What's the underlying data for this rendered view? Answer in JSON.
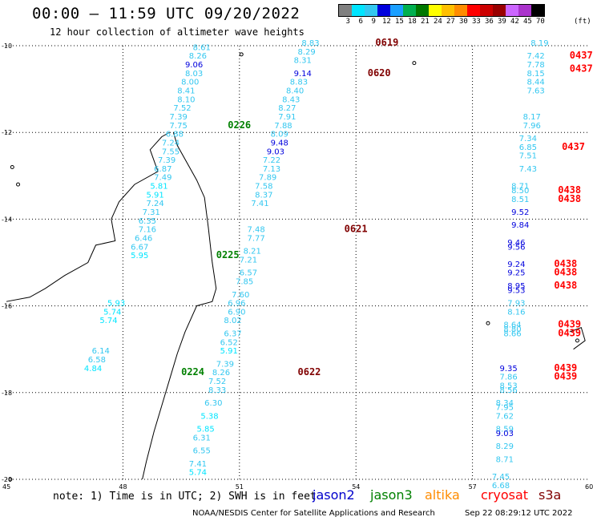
{
  "header": {
    "title": "00:00 – 11:59 UTC 09/20/2022",
    "subtitle": "12 hour collection of altimeter wave heights"
  },
  "colorbar": {
    "labels": [
      "3",
      "6",
      "9",
      "12",
      "15",
      "18",
      "21",
      "24",
      "27",
      "30",
      "33",
      "36",
      "39",
      "42",
      "45",
      "70"
    ],
    "unit": "(ft)",
    "colors": [
      "#808080",
      "#00e5ff",
      "#33c7f0",
      "#0000dd",
      "#1a9fff",
      "#00b050",
      "#007800",
      "#ffff00",
      "#ffc000",
      "#ff8c00",
      "#ff0000",
      "#cc0000",
      "#990000",
      "#cc66ff",
      "#aa33cc",
      "#000000"
    ]
  },
  "axes": {
    "lat_labels": [
      "-10",
      "-12",
      "-14",
      "-16",
      "-18",
      "-20"
    ],
    "lon_labels": [
      "45",
      "48",
      "51",
      "54",
      "57",
      "60"
    ]
  },
  "colors": {
    "jason2": "#0000cc",
    "jason3": "#008000",
    "altika": "#ff8c00",
    "cryosat": "#ff0000",
    "s3a": "#800000",
    "cyan": "#00bcd4"
  },
  "tracks": [
    {
      "pass": "0226",
      "pass_lat": -11.9,
      "pass_lon": 50.7,
      "pass_color": "#008000",
      "points": [
        [
          -10.1,
          49.8,
          "8.61",
          "#33c7f0"
        ],
        [
          -10.3,
          49.7,
          "8.26",
          "#33c7f0"
        ],
        [
          -10.5,
          49.6,
          "9.06",
          "#0000dd"
        ],
        [
          -10.7,
          49.6,
          "8.03",
          "#33c7f0"
        ],
        [
          -10.9,
          49.5,
          "8.00",
          "#33c7f0"
        ],
        [
          -11.1,
          49.4,
          "8.41",
          "#33c7f0"
        ],
        [
          -11.3,
          49.4,
          "8.10",
          "#33c7f0"
        ],
        [
          -11.5,
          49.3,
          "7.52",
          "#33c7f0"
        ],
        [
          -11.7,
          49.2,
          "7.39",
          "#33c7f0"
        ],
        [
          -11.9,
          49.2,
          "7.75",
          "#33c7f0"
        ],
        [
          -12.1,
          49.1,
          "6.88",
          "#33c7f0"
        ],
        [
          -12.3,
          49.0,
          "7.24",
          "#33c7f0"
        ],
        [
          -12.5,
          49.0,
          "7.55",
          "#33c7f0"
        ],
        [
          -12.7,
          48.9,
          "7.39",
          "#33c7f0"
        ],
        [
          -12.9,
          48.8,
          "6.87",
          "#33c7f0"
        ],
        [
          -13.1,
          48.8,
          "7.49",
          "#33c7f0"
        ],
        [
          -13.3,
          48.7,
          "5.81",
          "#00e5ff"
        ],
        [
          -13.5,
          48.6,
          "5.91",
          "#00e5ff"
        ],
        [
          -13.7,
          48.6,
          "7.24",
          "#33c7f0"
        ],
        [
          -13.9,
          48.5,
          "7.31",
          "#33c7f0"
        ],
        [
          -14.1,
          48.4,
          "6.35",
          "#33c7f0"
        ],
        [
          -14.3,
          48.4,
          "7.16",
          "#33c7f0"
        ],
        [
          -14.5,
          48.3,
          "6.46",
          "#33c7f0"
        ],
        [
          -14.7,
          48.2,
          "6.67",
          "#33c7f0"
        ],
        [
          -14.9,
          48.2,
          "5.95",
          "#00e5ff"
        ]
      ]
    },
    {
      "pass": "0225",
      "pass_lat": -14.9,
      "pass_lon": 50.4,
      "pass_color": "#008000",
      "points": []
    },
    {
      "pass": "0224",
      "pass_lat": -17.6,
      "pass_lon": 49.5,
      "pass_color": "#008000",
      "points": [
        [
          -16.0,
          47.6,
          "5.93",
          "#00e5ff"
        ],
        [
          -16.2,
          47.5,
          "5.74",
          "#00e5ff"
        ],
        [
          -16.4,
          47.4,
          "5.74",
          "#00e5ff"
        ],
        [
          -17.1,
          47.2,
          "6.14",
          "#33c7f0"
        ],
        [
          -17.3,
          47.1,
          "6.58",
          "#33c7f0"
        ],
        [
          -17.5,
          47.0,
          "4.84",
          "#00e5ff"
        ]
      ]
    },
    {
      "pass": "0619",
      "pass_lat": -10.0,
      "pass_lon": 54.5,
      "pass_color": "#800000",
      "points": [
        [
          -10.0,
          52.6,
          "8.83",
          "#33c7f0"
        ],
        [
          -10.2,
          52.5,
          "8.29",
          "#33c7f0"
        ],
        [
          -10.4,
          52.4,
          "8.31",
          "#33c7f0"
        ]
      ]
    },
    {
      "pass": "0620",
      "pass_lat": -10.7,
      "pass_lon": 54.3,
      "pass_color": "#800000",
      "points": [
        [
          -10.7,
          52.4,
          "9.14",
          "#0000dd"
        ],
        [
          -10.9,
          52.3,
          "8.83",
          "#33c7f0"
        ],
        [
          -11.1,
          52.2,
          "8.40",
          "#33c7f0"
        ],
        [
          -11.3,
          52.1,
          "8.43",
          "#33c7f0"
        ],
        [
          -11.5,
          52.0,
          "8.27",
          "#33c7f0"
        ],
        [
          -11.7,
          52.0,
          "7.91",
          "#33c7f0"
        ],
        [
          -11.9,
          51.9,
          "7.88",
          "#33c7f0"
        ],
        [
          -12.1,
          51.8,
          "8.09",
          "#33c7f0"
        ],
        [
          -12.3,
          51.8,
          "9.48",
          "#0000dd"
        ],
        [
          -12.5,
          51.7,
          "9.03",
          "#0000dd"
        ],
        [
          -12.7,
          51.6,
          "7.22",
          "#33c7f0"
        ],
        [
          -12.9,
          51.6,
          "7.13",
          "#33c7f0"
        ],
        [
          -13.1,
          51.5,
          "7.89",
          "#33c7f0"
        ],
        [
          -13.3,
          51.4,
          "7.58",
          "#33c7f0"
        ],
        [
          -13.5,
          51.4,
          "8.37",
          "#33c7f0"
        ],
        [
          -13.7,
          51.3,
          "7.41",
          "#33c7f0"
        ]
      ]
    },
    {
      "pass": "0621",
      "pass_lat": -14.3,
      "pass_lon": 53.7,
      "pass_color": "#800000",
      "points": [
        [
          -14.3,
          51.2,
          "7.48",
          "#33c7f0"
        ],
        [
          -14.5,
          51.2,
          "7.77",
          "#33c7f0"
        ],
        [
          -14.8,
          51.1,
          "8.21",
          "#33c7f0"
        ],
        [
          -15.0,
          51.0,
          "7.21",
          "#33c7f0"
        ],
        [
          -15.3,
          51.0,
          "6.57",
          "#33c7f0"
        ],
        [
          -15.5,
          50.9,
          "7.85",
          "#33c7f0"
        ],
        [
          -15.8,
          50.8,
          "7.60",
          "#33c7f0"
        ],
        [
          -16.0,
          50.7,
          "6.96",
          "#33c7f0"
        ],
        [
          -16.2,
          50.7,
          "6.90",
          "#33c7f0"
        ],
        [
          -16.4,
          50.6,
          "8.02",
          "#33c7f0"
        ],
        [
          -16.7,
          50.6,
          "6.37",
          "#33c7f0"
        ],
        [
          -16.9,
          50.5,
          "6.52",
          "#33c7f0"
        ],
        [
          -17.1,
          50.5,
          "5.91",
          "#00e5ff"
        ],
        [
          -17.4,
          50.4,
          "7.39",
          "#33c7f0"
        ]
      ]
    },
    {
      "pass": "0622",
      "pass_lat": -17.6,
      "pass_lon": 52.5,
      "pass_color": "#800000",
      "points": [
        [
          -17.6,
          50.3,
          "8.26",
          "#33c7f0"
        ],
        [
          -17.8,
          50.2,
          "7.52",
          "#33c7f0"
        ],
        [
          -18.0,
          50.2,
          "8.33",
          "#33c7f0"
        ],
        [
          -18.3,
          50.1,
          "6.30",
          "#33c7f0"
        ],
        [
          -18.6,
          50.0,
          "5.38",
          "#00e5ff"
        ],
        [
          -18.9,
          49.9,
          "5.85",
          "#00e5ff"
        ],
        [
          -19.1,
          49.8,
          "6.31",
          "#33c7f0"
        ],
        [
          -19.4,
          49.8,
          "6.55",
          "#33c7f0"
        ],
        [
          -19.7,
          49.7,
          "7.41",
          "#33c7f0"
        ],
        [
          -19.9,
          49.7,
          "5.74",
          "#00e5ff"
        ]
      ]
    },
    {
      "pass": "0437",
      "pass_lat": -10.3,
      "pass_lon": 59.5,
      "pass_color": "#ff0000",
      "points": [
        [
          -10.0,
          58.5,
          "8.19",
          "#33c7f0"
        ],
        [
          -10.3,
          58.4,
          "7.42",
          "#33c7f0"
        ],
        [
          -10.5,
          58.4,
          "7.78",
          "#33c7f0"
        ],
        [
          -10.7,
          58.4,
          "8.15",
          "#33c7f0"
        ],
        [
          -10.9,
          58.4,
          "8.44",
          "#33c7f0"
        ],
        [
          -11.1,
          58.4,
          "7.63",
          "#33c7f0"
        ]
      ]
    },
    {
      "pass": "0437",
      "pass_lat": -10.6,
      "pass_lon": 59.5,
      "pass_color": "#ff0000",
      "points": []
    },
    {
      "pass": "0437",
      "pass_lat": -12.4,
      "pass_lon": 59.3,
      "pass_color": "#ff0000",
      "points": [
        [
          -11.7,
          58.3,
          "8.17",
          "#33c7f0"
        ],
        [
          -11.9,
          58.3,
          "7.96",
          "#33c7f0"
        ],
        [
          -12.2,
          58.2,
          "7.34",
          "#33c7f0"
        ],
        [
          -12.4,
          58.2,
          "6.85",
          "#33c7f0"
        ],
        [
          -12.6,
          58.2,
          "7.51",
          "#33c7f0"
        ],
        [
          -12.9,
          58.2,
          "7.43",
          "#33c7f0"
        ]
      ]
    },
    {
      "pass": "0438",
      "pass_lat": -13.4,
      "pass_lon": 59.2,
      "pass_color": "#ff0000",
      "points": [
        [
          -13.3,
          58.0,
          "8.71",
          "#33c7f0"
        ],
        [
          -13.4,
          58.0,
          "8.50",
          "#33c7f0"
        ],
        [
          -13.6,
          58.0,
          "8.51",
          "#33c7f0"
        ],
        [
          -13.9,
          58.0,
          "9.52",
          "#0000dd"
        ],
        [
          -14.2,
          58.0,
          "9.84",
          "#0000dd"
        ],
        [
          -14.6,
          57.9,
          "9.46",
          "#0000dd"
        ],
        [
          -14.7,
          57.9,
          "9.56",
          "#0000dd"
        ],
        [
          -15.1,
          57.9,
          "9.24",
          "#0000dd"
        ],
        [
          -15.3,
          57.9,
          "9.25",
          "#0000dd"
        ],
        [
          -15.6,
          57.9,
          "8.95",
          "#0000dd"
        ],
        [
          -15.7,
          57.9,
          "9.53",
          "#0000dd"
        ],
        [
          -16.0,
          57.9,
          "7.93",
          "#33c7f0"
        ],
        [
          -16.2,
          57.9,
          "8.16",
          "#33c7f0"
        ]
      ]
    },
    {
      "pass": "0438",
      "pass_lat": -13.6,
      "pass_lon": 59.2,
      "pass_color": "#ff0000",
      "points": []
    },
    {
      "pass": "0438",
      "pass_lat": -15.1,
      "pass_lon": 59.1,
      "pass_color": "#ff0000",
      "points": []
    },
    {
      "pass": "0438",
      "pass_lat": -15.3,
      "pass_lon": 59.1,
      "pass_color": "#ff0000",
      "points": []
    },
    {
      "pass": "0438",
      "pass_lat": -15.6,
      "pass_lon": 59.1,
      "pass_color": "#ff0000",
      "points": []
    },
    {
      "pass": "0439",
      "pass_lat": -16.5,
      "pass_lon": 59.2,
      "pass_color": "#ff0000",
      "points": [
        [
          -16.5,
          57.8,
          "8.64",
          "#33c7f0"
        ],
        [
          -16.6,
          57.8,
          "8.80",
          "#33c7f0"
        ],
        [
          -16.7,
          57.8,
          "8.66",
          "#33c7f0"
        ]
      ]
    },
    {
      "pass": "0439",
      "pass_lat": -16.7,
      "pass_lon": 59.2,
      "pass_color": "#ff0000",
      "points": []
    },
    {
      "pass": "0439",
      "pass_lat": -17.5,
      "pass_lon": 59.1,
      "pass_color": "#ff0000",
      "points": [
        [
          -17.5,
          57.7,
          "9.35",
          "#0000dd"
        ],
        [
          -17.7,
          57.7,
          "7.86",
          "#33c7f0"
        ],
        [
          -17.9,
          57.7,
          "8.53",
          "#33c7f0"
        ],
        [
          -18.0,
          57.7,
          "8.56",
          "#33c7f0"
        ],
        [
          -18.3,
          57.6,
          "8.34",
          "#33c7f0"
        ],
        [
          -18.4,
          57.6,
          "7.95",
          "#33c7f0"
        ],
        [
          -18.6,
          57.6,
          "7.62",
          "#33c7f0"
        ],
        [
          -18.9,
          57.6,
          "8.59",
          "#33c7f0"
        ],
        [
          -19.0,
          57.6,
          "9.03",
          "#0000dd"
        ],
        [
          -19.3,
          57.6,
          "8.29",
          "#33c7f0"
        ],
        [
          -19.6,
          57.6,
          "8.71",
          "#33c7f0"
        ],
        [
          -20.0,
          57.5,
          "7.45",
          "#33c7f0"
        ],
        [
          -20.2,
          57.5,
          "6.68",
          "#33c7f0"
        ]
      ]
    },
    {
      "pass": "0439",
      "pass_lat": -17.7,
      "pass_lon": 59.1,
      "pass_color": "#ff0000",
      "points": []
    }
  ],
  "legend": {
    "note": "note: 1) Time is in UTC; 2) SWH is in feet",
    "sats": [
      {
        "name": "jason2",
        "color": "#0000cc"
      },
      {
        "name": "jason3",
        "color": "#008000"
      },
      {
        "name": "altika",
        "color": "#ff8c00"
      },
      {
        "name": "cryosat",
        "color": "#ff0000"
      },
      {
        "name": "s3a",
        "color": "#800000"
      }
    ]
  },
  "footer": {
    "credit": "NOAA/NESDIS Center for Satellite Applications and Research",
    "stamp": "Sep 22 08:29:12 UTC 2022"
  }
}
